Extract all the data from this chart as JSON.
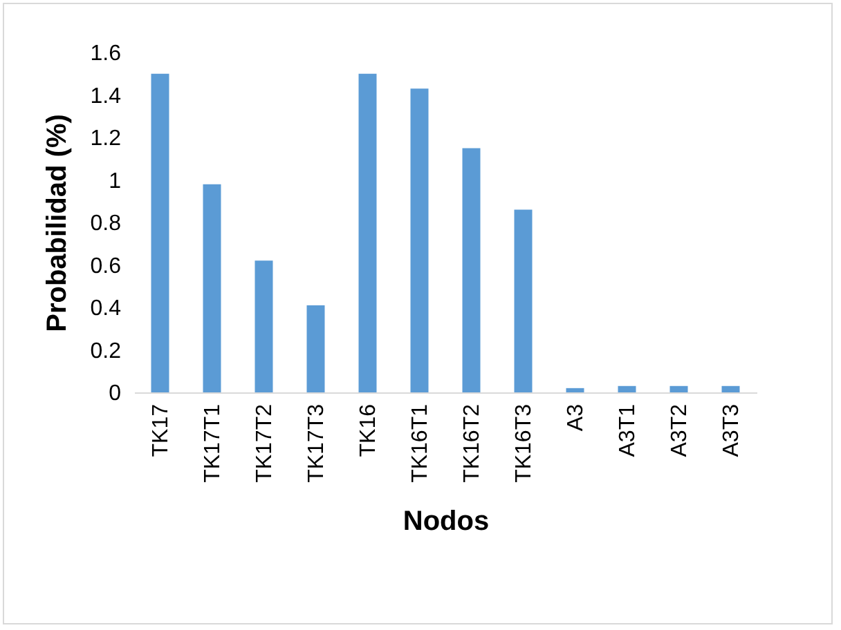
{
  "chart_data": {
    "type": "bar",
    "xlabel": "Nodos",
    "ylabel": "Probabilidad (%)",
    "categories": [
      "TK17",
      "TK17T1",
      "TK17T2",
      "TK17T3",
      "TK16",
      "TK16T1",
      "TK16T2",
      "TK16T3",
      "A3",
      "A3T1",
      "A3T2",
      "A3T3"
    ],
    "values": [
      1.5,
      0.98,
      0.62,
      0.41,
      1.5,
      1.43,
      1.15,
      0.86,
      0.02,
      0.03,
      0.03,
      0.03
    ],
    "color": "#5b9bd5",
    "ylim": [
      0,
      1.6
    ],
    "yticks": [
      0,
      0.2,
      0.4,
      0.6,
      0.8,
      1,
      1.2,
      1.4,
      1.6
    ],
    "grid": false
  }
}
